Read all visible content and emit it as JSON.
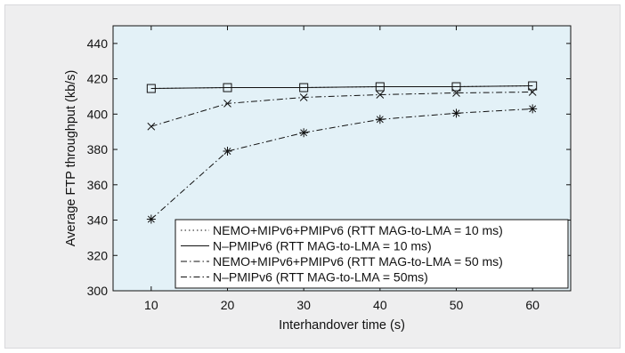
{
  "chart_data": {
    "type": "line",
    "xlabel": "Interhandover time (s)",
    "ylabel": "Average FTP throughput (kb/s)",
    "xlim": [
      5,
      65
    ],
    "ylim": [
      300,
      450
    ],
    "x_ticks": [
      10,
      20,
      30,
      40,
      50,
      60
    ],
    "y_ticks": [
      300,
      320,
      340,
      360,
      380,
      400,
      420,
      440
    ],
    "grid": false,
    "legend_position": "bottom-right",
    "plot_background": "#e3f1f7",
    "x": [
      10,
      20,
      30,
      40,
      50,
      60
    ],
    "series": [
      {
        "name": "NEMO+MIPv6+PMIPv6 (RTT MAG-to-LMA = 10 ms)",
        "line_style": "dotted",
        "marker": "none",
        "values": [
          414.5,
          415,
          415,
          415.5,
          415.5,
          416
        ]
      },
      {
        "name": "N–PMIPv6 (RTT MAG-to-LMA = 10 ms)",
        "line_style": "solid",
        "marker": "square",
        "values": [
          414.5,
          415,
          415,
          415.5,
          415.5,
          416
        ]
      },
      {
        "name": "NEMO+MIPv6+PMIPv6 (RTT MAG-to-LMA = 50 ms)",
        "line_style": "dashdot",
        "marker": "asterisk",
        "values": [
          340.5,
          379,
          389.5,
          397,
          400.5,
          403
        ]
      },
      {
        "name": "N–PMIPv6 (RTT MAG-to-LMA = 50ms)",
        "line_style": "dashdot",
        "marker": "x",
        "values": [
          393,
          406,
          409.5,
          411,
          412,
          412.5
        ]
      }
    ]
  }
}
